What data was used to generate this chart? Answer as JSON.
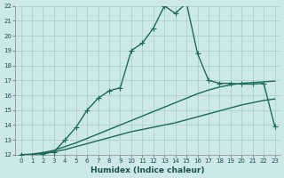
{
  "title": "",
  "xlabel": "Humidex (Indice chaleur)",
  "xlim": [
    -0.5,
    23.5
  ],
  "ylim": [
    12,
    22
  ],
  "yticks": [
    12,
    13,
    14,
    15,
    16,
    17,
    18,
    19,
    20,
    21,
    22
  ],
  "xticks": [
    0,
    1,
    2,
    3,
    4,
    5,
    6,
    7,
    8,
    9,
    10,
    11,
    12,
    13,
    14,
    15,
    16,
    17,
    18,
    19,
    20,
    21,
    22,
    23
  ],
  "bg_color": "#cce8e8",
  "grid_color": "#aacccc",
  "line_color": "#1a6b5a",
  "line1_x": [
    0,
    1,
    2,
    3,
    4,
    5,
    6,
    7,
    8,
    9,
    10,
    11,
    12,
    13,
    14,
    15,
    16,
    17,
    18,
    19,
    20,
    21,
    22,
    23
  ],
  "line1_y": [
    12.0,
    11.85,
    12.05,
    12.2,
    13.0,
    13.85,
    15.0,
    15.8,
    16.3,
    16.5,
    19.0,
    19.5,
    20.5,
    22.0,
    21.5,
    22.2,
    18.8,
    17.0,
    16.8,
    16.8,
    16.75,
    16.75,
    16.8,
    13.9
  ],
  "line2_x": [
    0,
    1,
    2,
    3,
    4,
    5,
    6,
    7,
    8,
    9,
    10,
    11,
    12,
    13,
    14,
    15,
    16,
    17,
    18,
    19,
    20,
    21,
    22,
    23
  ],
  "line2_y": [
    12.0,
    12.05,
    12.15,
    12.3,
    12.55,
    12.8,
    13.1,
    13.4,
    13.7,
    14.0,
    14.3,
    14.6,
    14.9,
    15.2,
    15.5,
    15.8,
    16.1,
    16.35,
    16.55,
    16.7,
    16.8,
    16.85,
    16.9,
    16.95
  ],
  "line3_x": [
    0,
    1,
    2,
    3,
    4,
    5,
    6,
    7,
    8,
    9,
    10,
    11,
    12,
    13,
    14,
    15,
    16,
    17,
    18,
    19,
    20,
    21,
    22,
    23
  ],
  "line3_y": [
    12.0,
    12.0,
    12.1,
    12.2,
    12.35,
    12.55,
    12.75,
    12.95,
    13.15,
    13.35,
    13.55,
    13.7,
    13.85,
    14.0,
    14.15,
    14.35,
    14.55,
    14.75,
    14.95,
    15.15,
    15.35,
    15.5,
    15.65,
    15.75
  ],
  "marker_size": 2.5,
  "line_width": 1.0,
  "label_fontsize": 6.5,
  "tick_fontsize": 5.0
}
